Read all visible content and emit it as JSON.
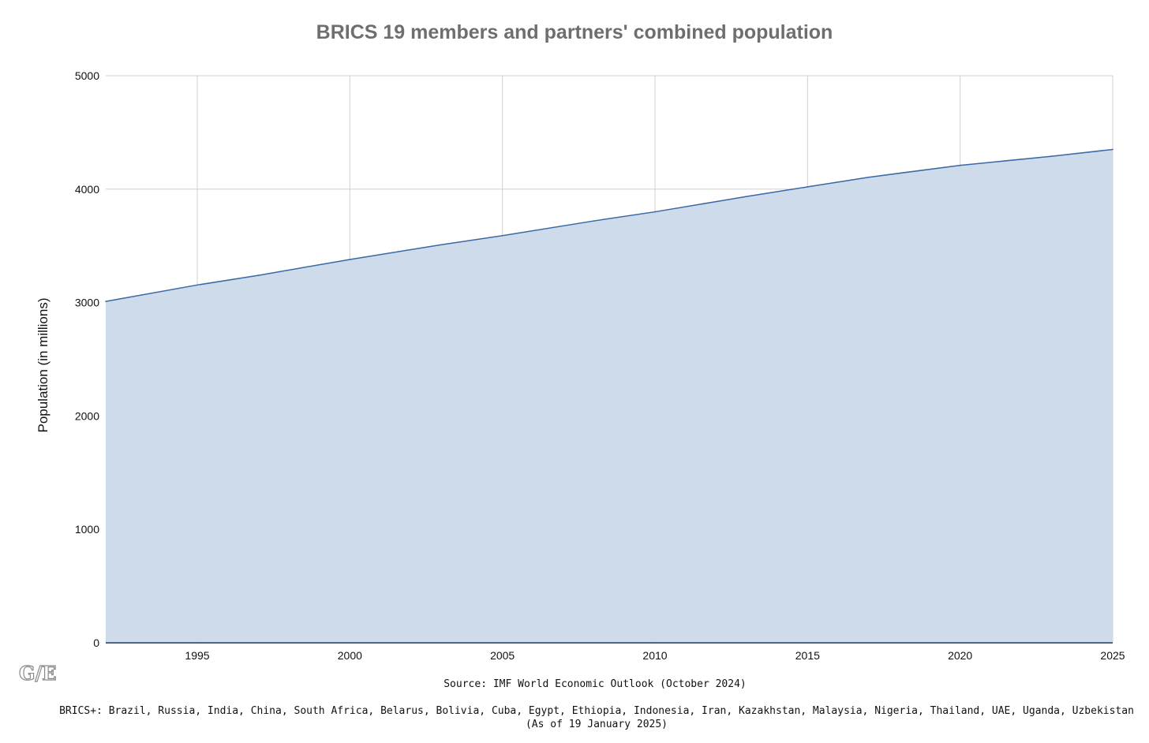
{
  "chart_data": {
    "type": "area",
    "title": "BRICS 19 members and partners' combined population",
    "xlabel": "",
    "ylabel": "Population (in millions)",
    "x": [
      1992,
      1995,
      1997,
      2000,
      2003,
      2005,
      2008,
      2010,
      2013,
      2015,
      2017,
      2020,
      2023,
      2025
    ],
    "series": [
      {
        "values": [
          3010,
          3155,
          3240,
          3380,
          3510,
          3590,
          3720,
          3800,
          3935,
          4020,
          4105,
          4210,
          4290,
          4350
        ]
      }
    ],
    "xlim": [
      1992,
      2025
    ],
    "ylim": [
      0,
      5000
    ],
    "x_ticks": [
      "1995",
      "2000",
      "2005",
      "2010",
      "2015",
      "2020",
      "2025"
    ],
    "y_ticks": [
      "0",
      "1000",
      "2000",
      "3000",
      "4000",
      "5000"
    ],
    "grid": true,
    "colors": {
      "line": "#3a68a4",
      "fill": "#cad9ea",
      "grid": "#d0d0d0",
      "title": "#6e6e6e"
    },
    "source": "Source: IMF World Economic Outlook (October 2024)",
    "members_note": "BRICS+: Brazil, Russia, India, China, South Africa, Belarus, Bolivia, Cuba, Egypt, Ethiopia, Indonesia, Iran, Kazakhstan, Malaysia, Nigeria, Thailand, UAE, Uganda, Uzbekistan",
    "date_note": "(As of 19 January 2025)",
    "logo_text": "G/E"
  }
}
